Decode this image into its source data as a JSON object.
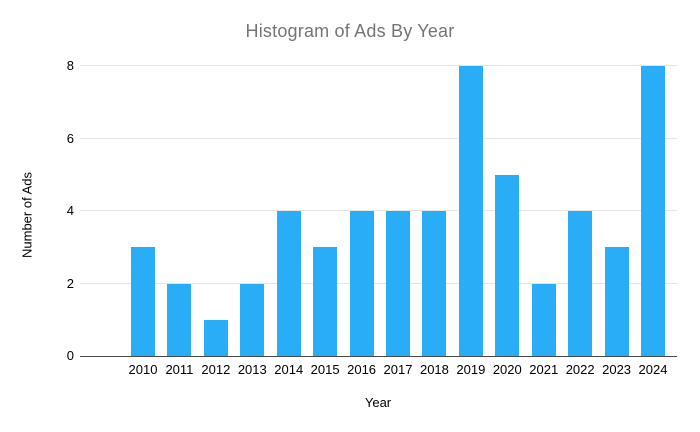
{
  "chart_data": {
    "type": "bar",
    "title": "Histogram of Ads By Year",
    "xlabel": "Year",
    "ylabel": "Number of Ads",
    "categories": [
      "2010",
      "2011",
      "2012",
      "2013",
      "2014",
      "2015",
      "2016",
      "2017",
      "2018",
      "2019",
      "2020",
      "2021",
      "2022",
      "2023",
      "2024"
    ],
    "values": [
      3,
      2,
      1,
      2,
      4,
      3,
      4,
      4,
      4,
      8,
      5,
      2,
      4,
      3,
      8
    ],
    "yticks": [
      0,
      2,
      4,
      6,
      8
    ],
    "ylim": [
      0,
      8
    ],
    "grid": true,
    "legend": "none",
    "bar_color": "#2aadf7"
  },
  "colors": {
    "background": "#ffffff",
    "title_text": "#757575",
    "axis_text": "#000000",
    "gridline": "#e6e6e6",
    "axis_line": "#4a4a4a",
    "bar": "#2aadf7"
  }
}
